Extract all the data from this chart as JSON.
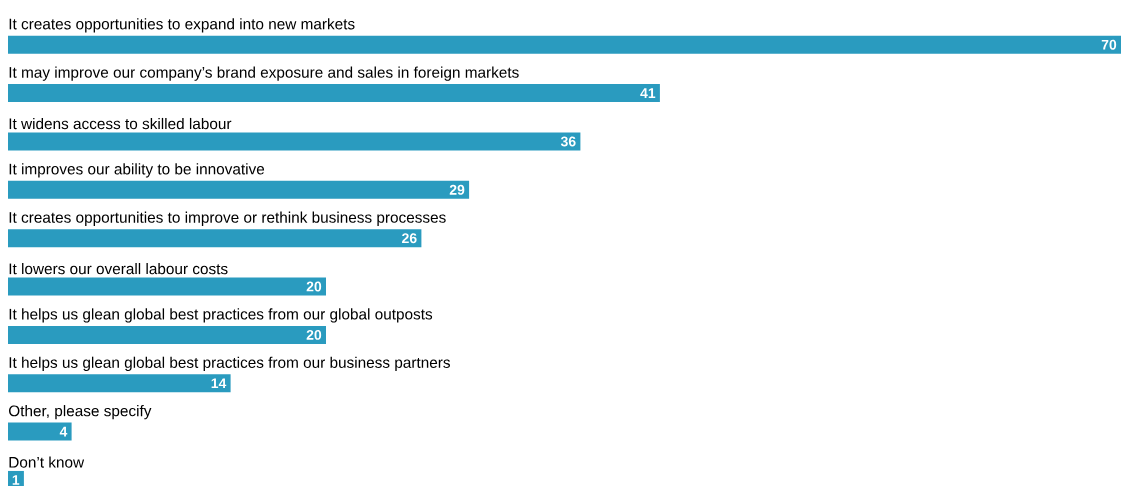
{
  "chart_data": {
    "type": "bar",
    "orientation": "horizontal",
    "categories": [
      "It creates opportunities to expand into new markets",
      "It may improve our company’s brand exposure and sales in foreign markets",
      "It widens access to skilled labour",
      "It improves our ability to be innovative",
      "It creates opportunities to improve or rethink business processes",
      "It lowers our overall labour costs",
      "It helps us glean global best practices from our global outposts",
      "It helps us glean global best practices from our business partners",
      "Other, please specify",
      "Don’t know"
    ],
    "values": [
      70,
      41,
      36,
      29,
      26,
      20,
      20,
      14,
      4,
      1
    ],
    "color": "#2a9bbf",
    "data_labels": true
  }
}
